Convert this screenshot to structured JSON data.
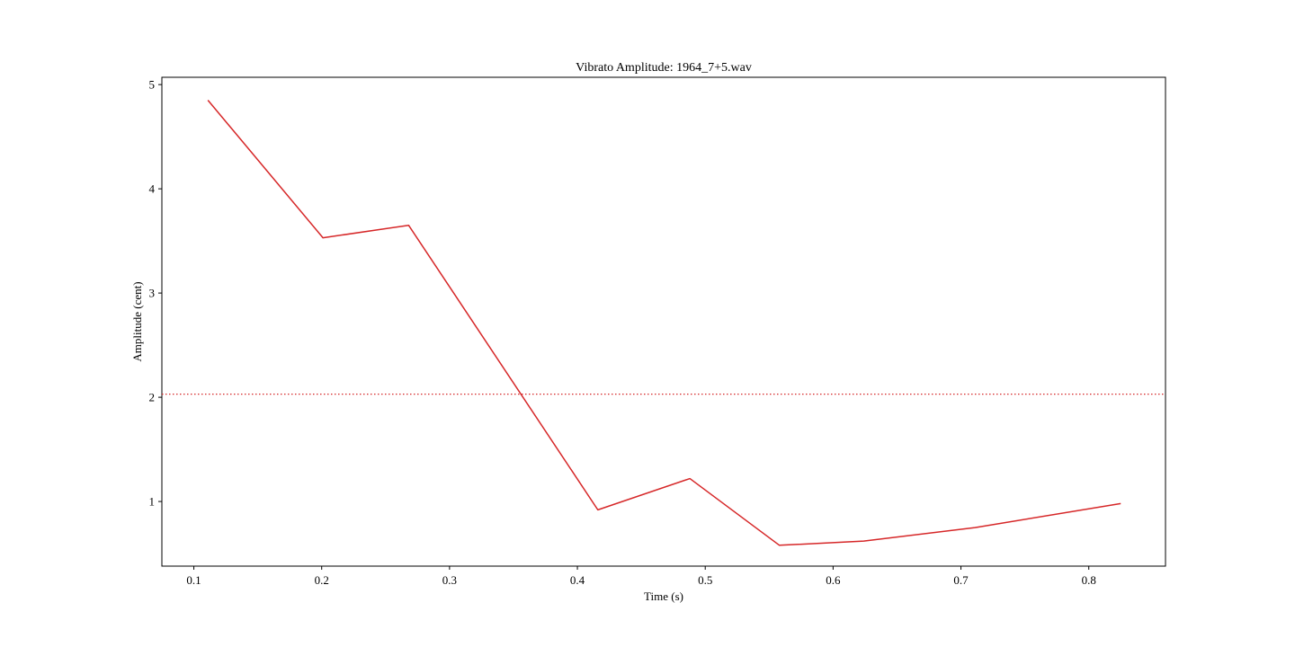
{
  "chart_data": {
    "type": "line",
    "title": "Vibrato Amplitude: 1964_7+5.wav",
    "xlabel": "Time (s)",
    "ylabel": "Amplitude (cent)",
    "xlim": [
      0.075,
      0.86
    ],
    "ylim": [
      0.38,
      5.07
    ],
    "xticks": [
      0.1,
      0.2,
      0.3,
      0.4,
      0.5,
      0.6,
      0.7,
      0.8
    ],
    "yticks": [
      1,
      2,
      3,
      4,
      5
    ],
    "xtick_labels": [
      "0.1",
      "0.2",
      "0.3",
      "0.4",
      "0.5",
      "0.6",
      "0.7",
      "0.8"
    ],
    "ytick_labels": [
      "1",
      "2",
      "3",
      "4",
      "5"
    ],
    "grid": false,
    "series": [
      {
        "color": "#d62728",
        "style": "solid",
        "x": [
          0.111,
          0.201,
          0.268,
          0.416,
          0.488,
          0.558,
          0.624,
          0.711,
          0.825
        ],
        "y": [
          4.85,
          3.53,
          3.65,
          0.92,
          1.22,
          0.58,
          0.62,
          0.75,
          0.98
        ]
      }
    ],
    "reference_lines": [
      {
        "orientation": "horizontal",
        "y": 2.03,
        "color": "#d62728",
        "style": "dotted"
      }
    ]
  }
}
